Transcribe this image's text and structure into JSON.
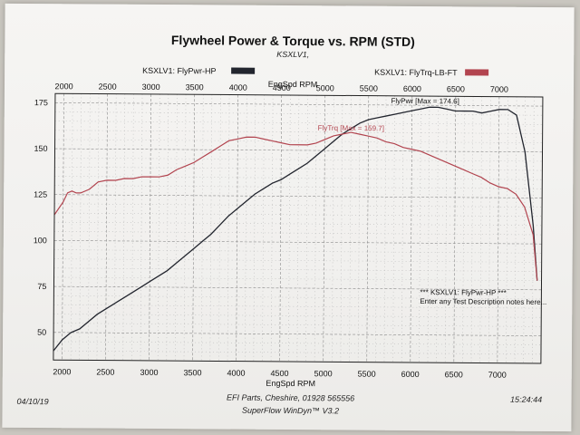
{
  "chart_data": {
    "type": "line",
    "title": "Flywheel Power & Torque vs. RPM (STD)",
    "subtitle": "KSXLV1,",
    "xlabel": "EngSpd RPM",
    "x_ticks": [
      2000,
      2500,
      3000,
      3500,
      4000,
      4500,
      5000,
      5500,
      6000,
      6500,
      7000
    ],
    "xlim": [
      1900,
      7500
    ],
    "y_ticks": [
      50,
      75,
      100,
      125,
      150,
      175
    ],
    "ylim": [
      35,
      180
    ],
    "grid": true,
    "legend": [
      {
        "label": "KSXLV1: FlyPwr-HP",
        "color": "#22252e"
      },
      {
        "label": "KSXLV1: FlyTrq-LB-FT",
        "color": "#b2444f"
      }
    ],
    "series": [
      {
        "name": "KSXLV1: FlyPwr-HP",
        "color": "#22252e",
        "annotation": "FlyPwr [Max = 174.6]",
        "x": [
          1900,
          2000,
          2100,
          2200,
          2300,
          2400,
          2500,
          2600,
          2700,
          2800,
          2900,
          3000,
          3100,
          3200,
          3300,
          3400,
          3500,
          3600,
          3700,
          3800,
          3900,
          4000,
          4100,
          4200,
          4300,
          4400,
          4500,
          4600,
          4700,
          4800,
          4900,
          5000,
          5100,
          5200,
          5300,
          5400,
          5500,
          5600,
          5700,
          5800,
          5900,
          6000,
          6100,
          6200,
          6300,
          6400,
          6500,
          6600,
          6700,
          6800,
          6900,
          7000,
          7100,
          7200,
          7300,
          7400,
          7450
        ],
        "y": [
          40,
          46,
          50,
          52,
          56,
          60,
          63,
          66,
          69,
          72,
          75,
          78,
          81,
          84,
          88,
          92,
          96,
          100,
          104,
          109,
          114,
          118,
          122,
          126,
          129,
          132,
          134,
          137,
          140,
          143,
          147,
          151,
          155,
          159,
          162,
          165,
          167,
          168,
          169,
          170,
          171,
          172,
          173,
          174,
          174,
          173,
          172,
          172,
          172,
          171,
          172,
          173,
          173,
          170,
          150,
          110,
          80
        ]
      },
      {
        "name": "KSXLV1: FlyTrq-LB-FT",
        "color": "#b2444f",
        "annotation": "FlyTrq [Max = 159.7]",
        "x": [
          1900,
          2000,
          2050,
          2100,
          2150,
          2200,
          2300,
          2400,
          2500,
          2600,
          2700,
          2800,
          2900,
          3000,
          3100,
          3200,
          3300,
          3400,
          3500,
          3600,
          3700,
          3800,
          3900,
          4000,
          4100,
          4200,
          4300,
          4400,
          4500,
          4600,
          4700,
          4800,
          4900,
          5000,
          5100,
          5200,
          5300,
          5400,
          5500,
          5600,
          5700,
          5800,
          5900,
          6000,
          6100,
          6200,
          6300,
          6400,
          6500,
          6600,
          6700,
          6800,
          6900,
          7000,
          7100,
          7200,
          7300,
          7400,
          7450
        ],
        "y": [
          114,
          121,
          126,
          127,
          126,
          126,
          128,
          132,
          133,
          133,
          134,
          134,
          135,
          135,
          135,
          136,
          139,
          141,
          143,
          146,
          149,
          152,
          155,
          156,
          157,
          157,
          156,
          155,
          154,
          153,
          153,
          153,
          154,
          156,
          158,
          159,
          160,
          159,
          158,
          157,
          155,
          154,
          152,
          151,
          150,
          148,
          146,
          144,
          142,
          140,
          138,
          136,
          133,
          131,
          130,
          127,
          120,
          105,
          80
        ]
      }
    ],
    "annotations": [
      "*** KSXLV1: FlyPwr-HP ***",
      "Enter any Test Description notes here..."
    ]
  },
  "footer": {
    "date": "04/10/19",
    "company": "EFI Parts, Cheshire, 01928 565556",
    "software": "SuperFlow WinDyn™ V3.2",
    "time": "15:24:44"
  }
}
